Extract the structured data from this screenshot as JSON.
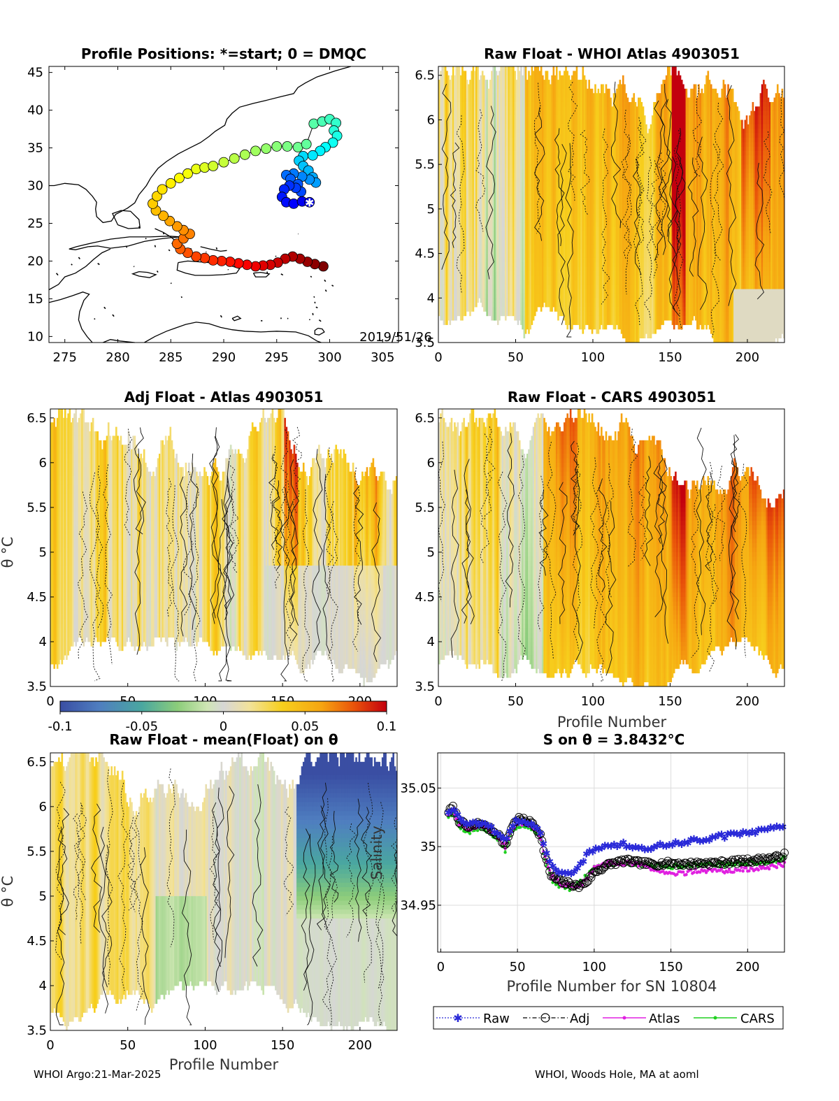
{
  "footer": {
    "left": "WHOI Argo:21-Mar-2025",
    "right": "WHOI, Woods Hole, MA at aoml"
  },
  "colors": {
    "raw": "#2a2ad8",
    "adj": "#000000",
    "atlas": "#e020e0",
    "cars": "#20d020",
    "coast": "#000000"
  },
  "chart_data": [
    {
      "type": "scatter",
      "panel": "map",
      "title": "Profile Positions: *=start; 0 = DMQC",
      "date_label": "2019/51/26",
      "xticks": [
        "275",
        "280",
        "285",
        "290",
        "295",
        "300",
        "305"
      ],
      "yticks": [
        "10",
        "15",
        "20",
        "25",
        "30",
        "35",
        "40",
        "45"
      ],
      "xlim": [
        273.5,
        306.5
      ],
      "ylim": [
        9.2,
        45.8
      ],
      "colormap": "jet",
      "start": [
        298.1,
        27.8
      ],
      "track": [
        [
          298.1,
          27.8
        ],
        [
          297.4,
          27.9
        ],
        [
          296.6,
          27.6
        ],
        [
          295.9,
          27.8
        ],
        [
          295.5,
          28.5
        ],
        [
          295.7,
          29.5
        ],
        [
          296.2,
          30.0
        ],
        [
          296.8,
          29.7
        ],
        [
          297.3,
          29.2
        ],
        [
          297.0,
          30.2
        ],
        [
          296.3,
          30.9
        ],
        [
          295.9,
          31.4
        ],
        [
          296.6,
          31.6
        ],
        [
          297.4,
          31.2
        ],
        [
          298.1,
          30.8
        ],
        [
          298.7,
          30.4
        ],
        [
          298.4,
          31.1
        ],
        [
          298.0,
          32.0
        ],
        [
          297.5,
          32.6
        ],
        [
          297.1,
          33.3
        ],
        [
          297.5,
          33.9
        ],
        [
          298.4,
          34.0
        ],
        [
          299.1,
          34.6
        ],
        [
          299.6,
          35.1
        ],
        [
          300.3,
          35.7
        ],
        [
          300.7,
          36.6
        ],
        [
          300.4,
          37.3
        ],
        [
          300.6,
          38.3
        ],
        [
          300.0,
          38.8
        ],
        [
          299.3,
          38.5
        ],
        [
          298.5,
          38.2
        ],
        [
          297.8,
          35.5
        ],
        [
          297.0,
          35.1
        ],
        [
          296.0,
          35.2
        ],
        [
          295.0,
          35.2
        ],
        [
          294.0,
          34.9
        ],
        [
          293.0,
          34.6
        ],
        [
          292.0,
          34.1
        ],
        [
          291.0,
          33.6
        ],
        [
          290.0,
          33.1
        ],
        [
          289.0,
          32.6
        ],
        [
          288.2,
          32.4
        ],
        [
          287.4,
          32.2
        ],
        [
          286.6,
          31.6
        ],
        [
          285.8,
          31.0
        ],
        [
          285.0,
          30.3
        ],
        [
          284.2,
          29.5
        ],
        [
          283.7,
          28.6
        ],
        [
          283.3,
          27.6
        ],
        [
          283.6,
          26.7
        ],
        [
          284.3,
          26.0
        ],
        [
          284.9,
          25.3
        ],
        [
          285.6,
          24.6
        ],
        [
          286.2,
          24.1
        ],
        [
          286.8,
          23.6
        ],
        [
          286.2,
          23.0
        ],
        [
          285.6,
          22.3
        ],
        [
          285.9,
          21.6
        ],
        [
          286.6,
          21.1
        ],
        [
          287.4,
          20.6
        ],
        [
          288.2,
          20.4
        ],
        [
          289.0,
          20.1
        ],
        [
          289.8,
          20.0
        ],
        [
          290.6,
          19.9
        ],
        [
          291.4,
          19.7
        ],
        [
          292.2,
          19.5
        ],
        [
          293.0,
          19.3
        ],
        [
          293.7,
          19.4
        ],
        [
          294.4,
          19.5
        ],
        [
          295.1,
          19.8
        ],
        [
          295.8,
          20.3
        ],
        [
          296.5,
          20.6
        ],
        [
          297.2,
          20.3
        ],
        [
          297.9,
          19.9
        ],
        [
          298.6,
          19.6
        ],
        [
          299.4,
          19.3
        ]
      ]
    },
    {
      "type": "heatmap",
      "panel": "raw-whoi",
      "title": "Raw Float - WHOI Atlas  4903051",
      "xticks": [
        "0",
        "50",
        "100",
        "150",
        "200"
      ],
      "yticks": [
        "3.5",
        "4",
        "4.5",
        "5",
        "5.5",
        "6",
        "6.5"
      ],
      "xlim": [
        0,
        224
      ],
      "ylim": [
        3.5,
        6.6
      ]
    },
    {
      "type": "heatmap",
      "panel": "adj-atlas",
      "title": "Adj Float - Atlas  4903051",
      "ylabel": "θ °C",
      "xticks": [
        "0",
        "50",
        "100",
        "150",
        "200"
      ],
      "yticks": [
        "3.5",
        "4",
        "4.5",
        "5",
        "5.5",
        "6",
        "6.5"
      ],
      "xlim": [
        0,
        224
      ],
      "ylim": [
        3.5,
        6.6
      ],
      "colorbar": {
        "ticks": [
          "-0.1",
          "-0.05",
          "0",
          "0.05",
          "0.1"
        ],
        "clim": [
          -0.1,
          0.1
        ]
      }
    },
    {
      "type": "heatmap",
      "panel": "raw-cars",
      "title": "Raw Float - CARS  4903051",
      "xlabel": "Profile Number",
      "xticks": [
        "0",
        "50",
        "100",
        "150",
        "200"
      ],
      "yticks": [
        "3.5",
        "4",
        "4.5",
        "5",
        "5.5",
        "6",
        "6.5"
      ],
      "xlim": [
        0,
        224
      ],
      "ylim": [
        3.5,
        6.6
      ]
    },
    {
      "type": "heatmap",
      "panel": "raw-mean",
      "title": "Raw Float - mean(Float) on θ",
      "xlabel": "Profile Number",
      "ylabel": "θ °C",
      "xticks": [
        "0",
        "50",
        "100",
        "150",
        "200"
      ],
      "yticks": [
        "3.5",
        "4",
        "4.5",
        "5",
        "5.5",
        "6",
        "6.5"
      ],
      "xlim": [
        0,
        224
      ],
      "ylim": [
        3.5,
        6.6
      ]
    },
    {
      "type": "line",
      "panel": "salinity",
      "title": "S on θ = 3.8432°C",
      "xlabel": "Profile Number for SN 10804",
      "ylabel": "Salinity",
      "xticks": [
        "0",
        "50",
        "100",
        "150",
        "200"
      ],
      "yticks": [
        "34.95",
        "35",
        "35.05"
      ],
      "xlim": [
        -2,
        224
      ],
      "ylim": [
        34.91,
        35.08
      ],
      "grid": true,
      "legend": [
        "Raw",
        "Adj",
        "Atlas",
        "CARS"
      ],
      "legend_position": "bottom-outside",
      "anchors": {
        "x": [
          5,
          8,
          12,
          18,
          25,
          32,
          38,
          42,
          46,
          50,
          55,
          60,
          65,
          68,
          72,
          78,
          85,
          90,
          95,
          100,
          110,
          120,
          130,
          140,
          150,
          160,
          170,
          180,
          190,
          200,
          210,
          220,
          224
        ],
        "raw": [
          35.03,
          35.032,
          35.024,
          35.018,
          35.02,
          35.016,
          35.012,
          35.005,
          35.018,
          35.022,
          35.02,
          35.02,
          35.012,
          35.0,
          34.985,
          34.978,
          34.975,
          34.985,
          34.992,
          34.998,
          35.0,
          35.002,
          34.998,
          35.0,
          35.002,
          35.004,
          35.006,
          35.008,
          35.01,
          35.012,
          35.014,
          35.016,
          35.018
        ],
        "adj": [
          35.03,
          35.033,
          35.022,
          35.016,
          35.02,
          35.015,
          35.01,
          35.0,
          35.016,
          35.024,
          35.022,
          35.02,
          35.01,
          34.992,
          34.975,
          34.97,
          34.968,
          34.966,
          34.97,
          34.978,
          34.985,
          34.988,
          34.986,
          34.985,
          34.986,
          34.985,
          34.986,
          34.986,
          34.987,
          34.988,
          34.989,
          34.991,
          34.993
        ],
        "atlas": [
          35.028,
          35.03,
          35.02,
          35.014,
          35.018,
          35.013,
          35.008,
          35.0,
          35.014,
          35.02,
          35.02,
          35.018,
          35.008,
          34.992,
          34.975,
          34.968,
          34.966,
          34.967,
          34.972,
          34.982,
          34.986,
          34.986,
          34.984,
          34.98,
          34.976,
          34.978,
          34.98,
          34.979,
          34.98,
          34.981,
          34.982,
          34.984,
          34.985
        ],
        "cars": [
          35.026,
          35.028,
          35.018,
          35.012,
          35.016,
          35.011,
          35.006,
          34.996,
          35.012,
          35.018,
          35.018,
          35.016,
          35.006,
          34.99,
          34.972,
          34.966,
          34.964,
          34.968,
          34.975,
          34.982,
          34.985,
          34.986,
          34.985,
          34.984,
          34.983,
          34.984,
          34.985,
          34.985,
          34.985,
          34.986,
          34.986,
          34.988,
          34.99
        ]
      }
    }
  ]
}
